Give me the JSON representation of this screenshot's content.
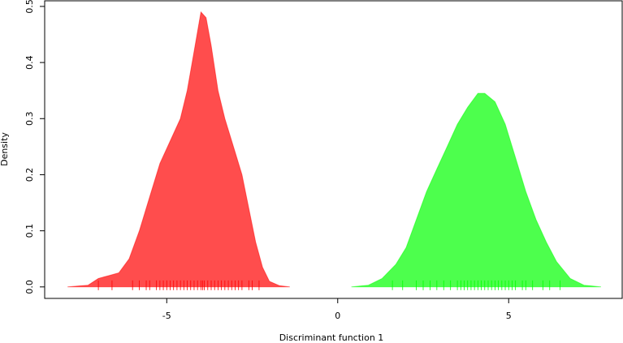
{
  "chart_data": {
    "type": "density",
    "xlabel": "Discriminant function 1",
    "ylabel": "Density",
    "xlim": [
      -8.57,
      8.32
    ],
    "ylim": [
      -0.0205,
      0.51
    ],
    "xticks": [
      -5,
      0,
      5
    ],
    "yticks": [
      {
        "value": 0,
        "label": "0.0"
      },
      0.1,
      0.2,
      0.3,
      0.4,
      0.5
    ],
    "series": [
      {
        "color": "#ff4d4d",
        "rug_color": "#ff0000",
        "x": [
          -7.9,
          -7.3,
          -7.0,
          -6.7,
          -6.4,
          -6.1,
          -5.8,
          -5.5,
          -5.2,
          -4.9,
          -4.6,
          -4.4,
          -4.2,
          -4.0,
          -3.85,
          -3.7,
          -3.5,
          -3.3,
          -3.0,
          -2.8,
          -2.6,
          -2.4,
          -2.2,
          -2.0,
          -1.7,
          -1.4
        ],
        "values": [
          0,
          0.003,
          0.015,
          0.02,
          0.025,
          0.05,
          0.1,
          0.16,
          0.22,
          0.26,
          0.3,
          0.35,
          0.42,
          0.49,
          0.48,
          0.43,
          0.35,
          0.3,
          0.24,
          0.2,
          0.14,
          0.08,
          0.035,
          0.01,
          0.002,
          0
        ],
        "rug": [
          -7.0,
          -6.6,
          -6.0,
          -5.8,
          -5.6,
          -5.5,
          -5.3,
          -5.2,
          -5.1,
          -5.0,
          -4.9,
          -4.8,
          -4.7,
          -4.6,
          -4.5,
          -4.4,
          -4.3,
          -4.2,
          -4.1,
          -4.0,
          -3.95,
          -3.9,
          -3.8,
          -3.7,
          -3.6,
          -3.5,
          -3.4,
          -3.3,
          -3.2,
          -3.1,
          -3.0,
          -2.9,
          -2.8,
          -2.6,
          -2.5,
          -2.3
        ]
      },
      {
        "color": "#4dff4d",
        "rug_color": "#00ff00",
        "x": [
          0.4,
          0.9,
          1.3,
          1.7,
          2.0,
          2.3,
          2.6,
          2.9,
          3.2,
          3.5,
          3.8,
          4.1,
          4.3,
          4.6,
          4.9,
          5.2,
          5.5,
          5.8,
          6.1,
          6.4,
          6.8,
          7.2,
          7.7
        ],
        "values": [
          0,
          0.003,
          0.015,
          0.04,
          0.07,
          0.12,
          0.17,
          0.21,
          0.25,
          0.29,
          0.32,
          0.345,
          0.345,
          0.33,
          0.29,
          0.23,
          0.17,
          0.12,
          0.08,
          0.045,
          0.015,
          0.003,
          0
        ],
        "rug": [
          1.6,
          1.9,
          2.3,
          2.5,
          2.7,
          2.9,
          3.1,
          3.3,
          3.5,
          3.6,
          3.7,
          3.8,
          3.9,
          4.0,
          4.1,
          4.2,
          4.3,
          4.4,
          4.5,
          4.6,
          4.7,
          4.8,
          4.9,
          5.0,
          5.1,
          5.2,
          5.4,
          5.5,
          5.7,
          6.0,
          6.2,
          6.5
        ]
      }
    ]
  }
}
